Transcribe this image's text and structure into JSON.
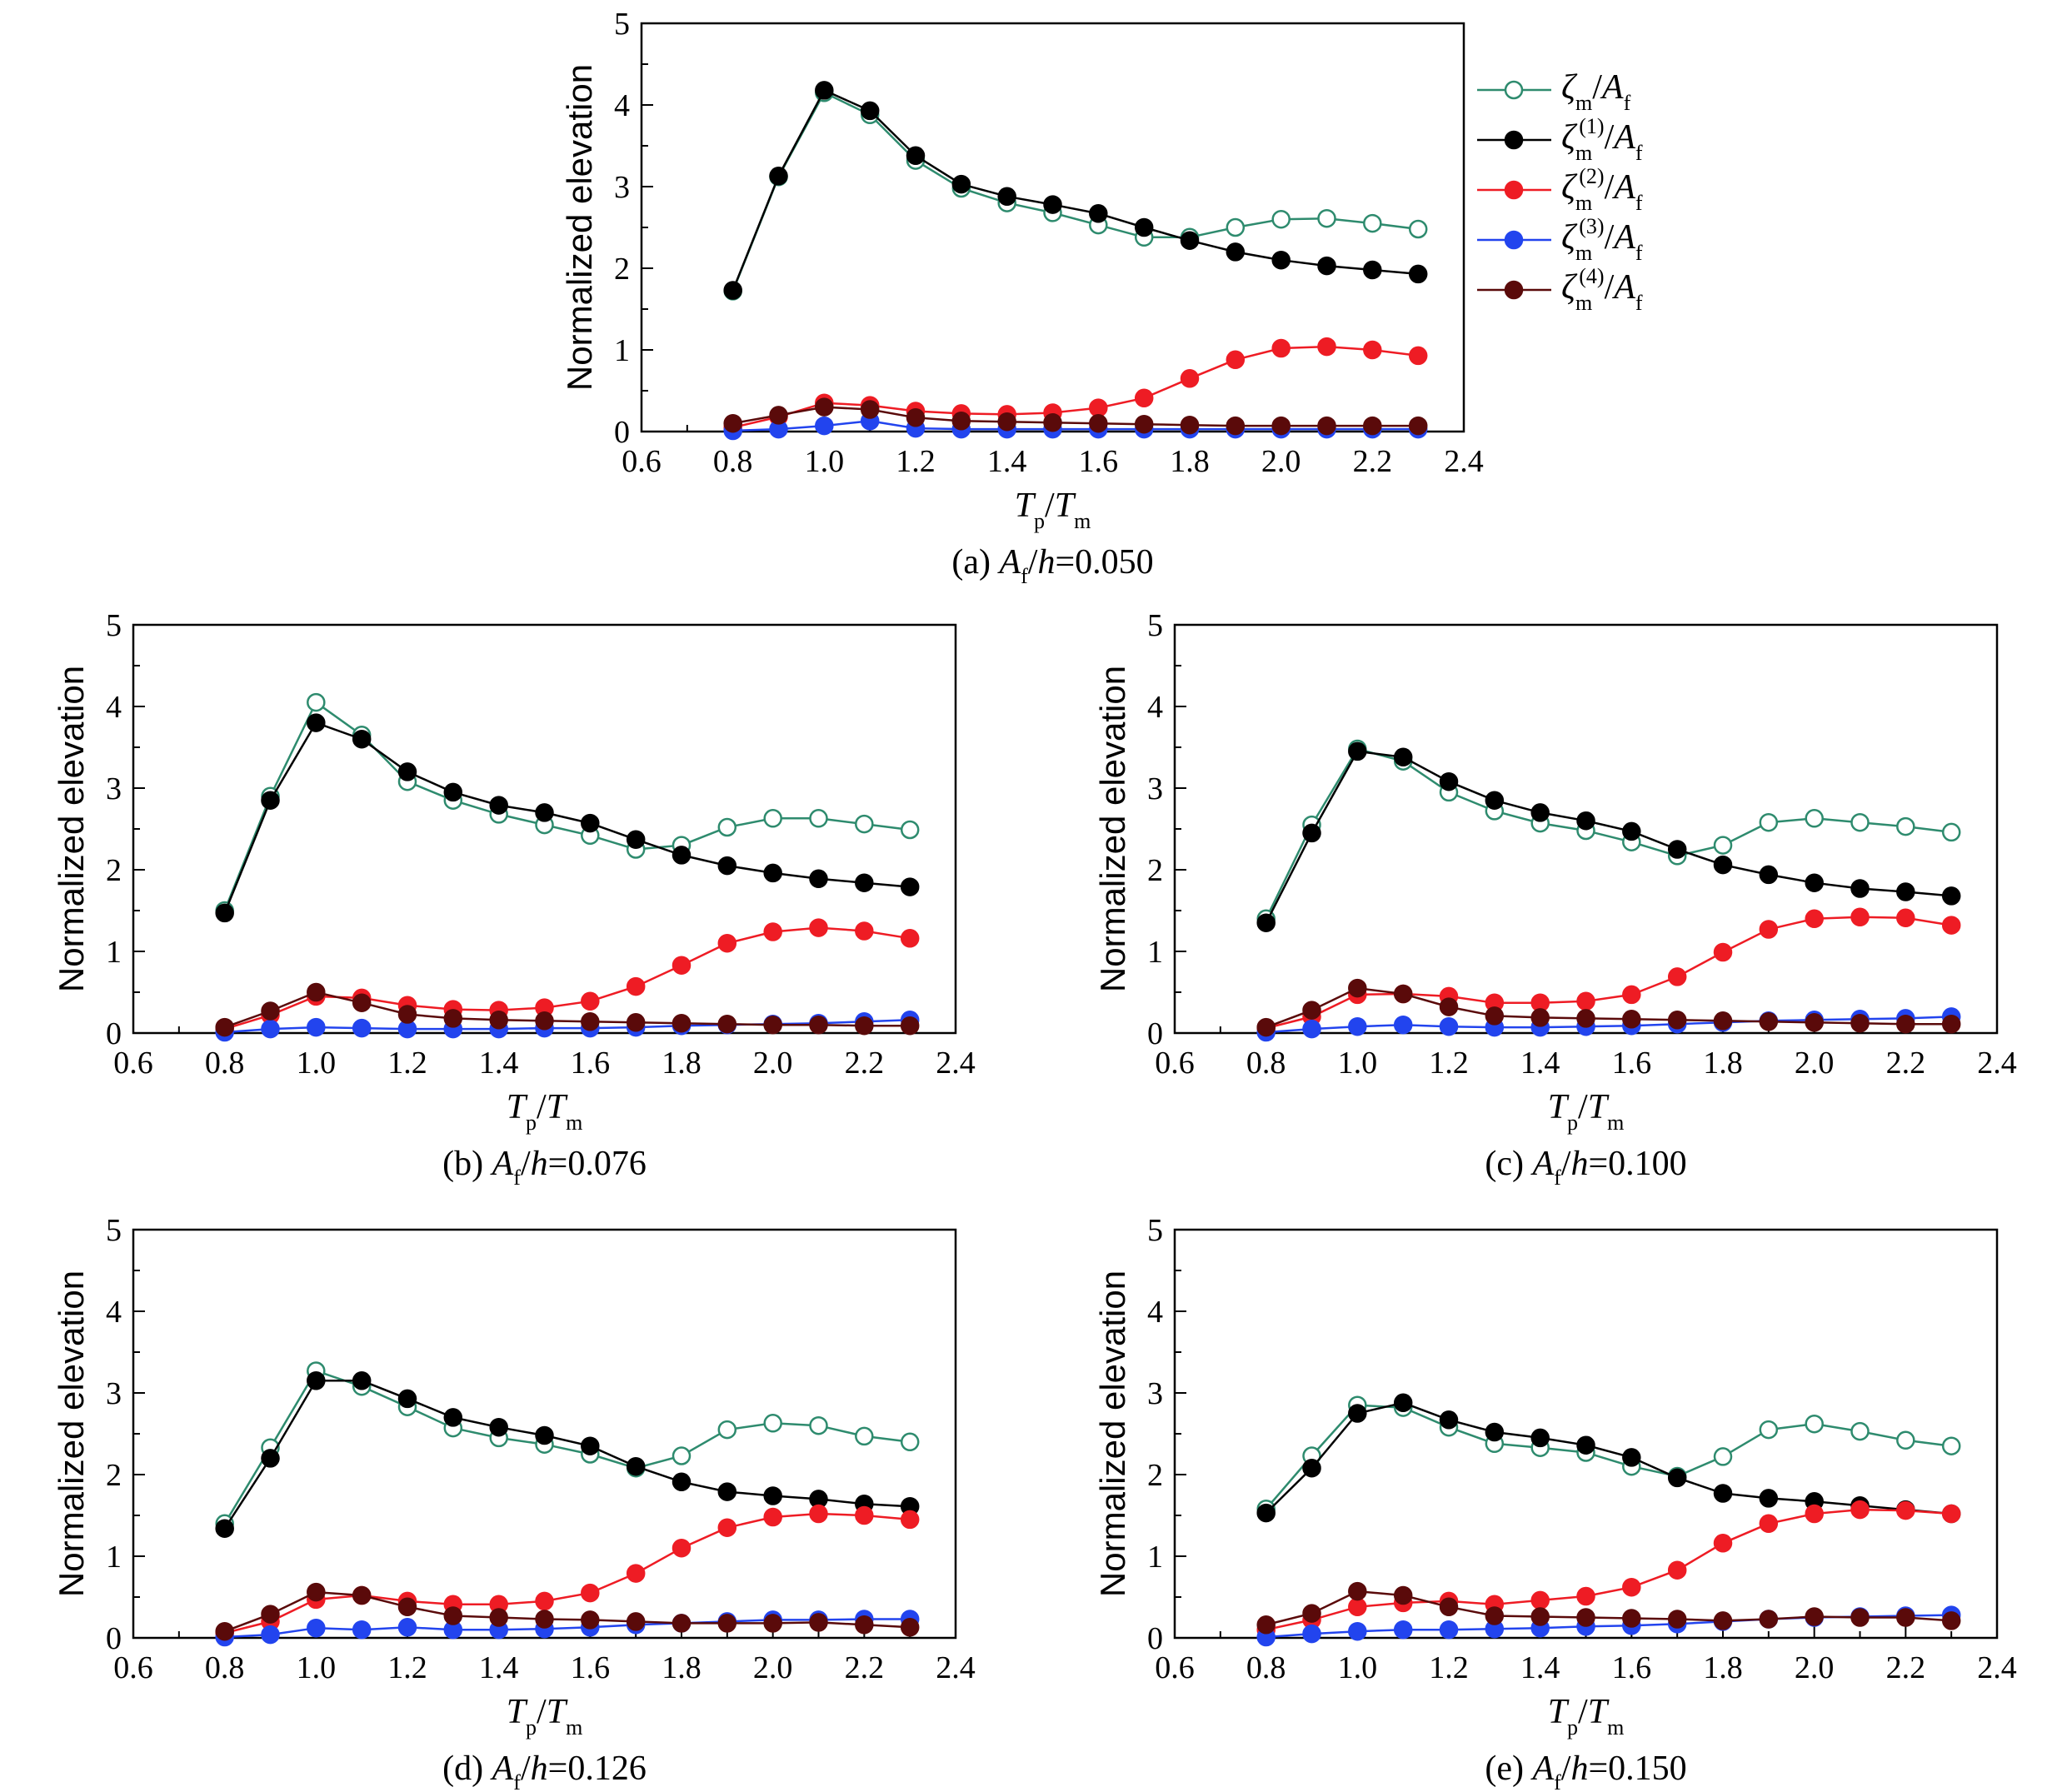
{
  "figure": {
    "colors": {
      "total": "#2e8b6e",
      "first": "#000000",
      "second": "#ee1c24",
      "third": "#2244ee",
      "fourth": "#5a0a0a"
    },
    "legend": [
      {
        "key": "total",
        "symbol": "ζ",
        "sub": "m",
        "sup": "",
        "denom": "A",
        "denom_sub": "f",
        "marker": "open"
      },
      {
        "key": "first",
        "symbol": "ζ",
        "sub": "m",
        "sup": "(1)",
        "denom": "A",
        "denom_sub": "f",
        "marker": "filled"
      },
      {
        "key": "second",
        "symbol": "ζ",
        "sub": "m",
        "sup": "(2)",
        "denom": "A",
        "denom_sub": "f",
        "marker": "filled"
      },
      {
        "key": "third",
        "symbol": "ζ",
        "sub": "m",
        "sup": "(3)",
        "denom": "A",
        "denom_sub": "f",
        "marker": "filled"
      },
      {
        "key": "fourth",
        "symbol": "ζ",
        "sub": "m",
        "sup": "(4)",
        "denom": "A",
        "denom_sub": "f",
        "marker": "filled"
      }
    ]
  },
  "chart_data": [
    {
      "type": "line",
      "panel_label": "(a)",
      "caption_value": "0.050",
      "ylabel": "Normalized elevation",
      "xlabel": {
        "T": "T",
        "p": "p",
        "slash": "/",
        "m": "m"
      },
      "xlim": [
        0.6,
        2.4
      ],
      "ylim": [
        0,
        5
      ],
      "xticks": [
        "0.6",
        "0.8",
        "1.0",
        "1.2",
        "1.4",
        "1.6",
        "1.8",
        "2.0",
        "2.2",
        "2.4"
      ],
      "yticks": [
        "0",
        "1",
        "2",
        "3",
        "4",
        "5"
      ],
      "x": [
        0.8,
        0.9,
        1.0,
        1.1,
        1.2,
        1.3,
        1.4,
        1.5,
        1.6,
        1.7,
        1.8,
        1.9,
        2.0,
        2.1,
        2.2,
        2.3
      ],
      "series": [
        {
          "key": "total",
          "values": [
            1.72,
            3.12,
            4.15,
            3.88,
            3.32,
            2.98,
            2.8,
            2.68,
            2.53,
            2.38,
            2.38,
            2.5,
            2.6,
            2.61,
            2.55,
            2.48
          ]
        },
        {
          "key": "first",
          "values": [
            1.73,
            3.13,
            4.18,
            3.93,
            3.38,
            3.03,
            2.88,
            2.78,
            2.67,
            2.5,
            2.34,
            2.2,
            2.1,
            2.03,
            1.98,
            1.93
          ]
        },
        {
          "key": "second",
          "values": [
            0.05,
            0.18,
            0.35,
            0.32,
            0.25,
            0.22,
            0.21,
            0.23,
            0.29,
            0.41,
            0.65,
            0.88,
            1.02,
            1.04,
            1.0,
            0.93
          ]
        },
        {
          "key": "third",
          "values": [
            0.01,
            0.03,
            0.07,
            0.13,
            0.04,
            0.03,
            0.03,
            0.03,
            0.03,
            0.03,
            0.03,
            0.03,
            0.03,
            0.03,
            0.03,
            0.03
          ]
        },
        {
          "key": "fourth",
          "values": [
            0.1,
            0.2,
            0.3,
            0.27,
            0.17,
            0.13,
            0.12,
            0.11,
            0.1,
            0.09,
            0.08,
            0.07,
            0.07,
            0.07,
            0.07,
            0.07
          ]
        }
      ]
    },
    {
      "type": "line",
      "panel_label": "(b)",
      "caption_value": "0.076",
      "ylabel": "Normalized elevation",
      "xlabel": {
        "T": "T",
        "p": "p",
        "slash": "/",
        "m": "m"
      },
      "xlim": [
        0.6,
        2.4
      ],
      "ylim": [
        0,
        5
      ],
      "xticks": [
        "0.6",
        "0.8",
        "1.0",
        "1.2",
        "1.4",
        "1.6",
        "1.8",
        "2.0",
        "2.2",
        "2.4"
      ],
      "yticks": [
        "0",
        "1",
        "2",
        "3",
        "4",
        "5"
      ],
      "x": [
        0.8,
        0.9,
        1.0,
        1.1,
        1.2,
        1.3,
        1.4,
        1.5,
        1.6,
        1.7,
        1.8,
        1.9,
        2.0,
        2.1,
        2.2,
        2.3
      ],
      "series": [
        {
          "key": "total",
          "values": [
            1.5,
            2.9,
            4.05,
            3.65,
            3.08,
            2.85,
            2.68,
            2.55,
            2.42,
            2.25,
            2.3,
            2.52,
            2.63,
            2.63,
            2.56,
            2.49
          ]
        },
        {
          "key": "first",
          "values": [
            1.47,
            2.85,
            3.8,
            3.6,
            3.2,
            2.95,
            2.79,
            2.7,
            2.57,
            2.37,
            2.18,
            2.05,
            1.96,
            1.89,
            1.84,
            1.79
          ]
        },
        {
          "key": "second",
          "values": [
            0.05,
            0.22,
            0.45,
            0.43,
            0.34,
            0.29,
            0.28,
            0.31,
            0.39,
            0.57,
            0.83,
            1.1,
            1.24,
            1.29,
            1.25,
            1.16
          ]
        },
        {
          "key": "third",
          "values": [
            0.01,
            0.05,
            0.07,
            0.06,
            0.05,
            0.05,
            0.05,
            0.06,
            0.06,
            0.07,
            0.09,
            0.1,
            0.11,
            0.12,
            0.14,
            0.16
          ]
        },
        {
          "key": "fourth",
          "values": [
            0.07,
            0.27,
            0.5,
            0.37,
            0.23,
            0.18,
            0.16,
            0.15,
            0.14,
            0.13,
            0.12,
            0.11,
            0.1,
            0.1,
            0.09,
            0.09
          ]
        }
      ]
    },
    {
      "type": "line",
      "panel_label": "(c)",
      "caption_value": "0.100",
      "ylabel": "Normalized elevation",
      "xlabel": {
        "T": "T",
        "p": "p",
        "slash": "/",
        "m": "m"
      },
      "xlim": [
        0.6,
        2.4
      ],
      "ylim": [
        0,
        5
      ],
      "xticks": [
        "0.6",
        "0.8",
        "1.0",
        "1.2",
        "1.4",
        "1.6",
        "1.8",
        "2.0",
        "2.2",
        "2.4"
      ],
      "yticks": [
        "0",
        "1",
        "2",
        "3",
        "4",
        "5"
      ],
      "x": [
        0.8,
        0.9,
        1.0,
        1.1,
        1.2,
        1.3,
        1.4,
        1.5,
        1.6,
        1.7,
        1.8,
        1.9,
        2.0,
        2.1,
        2.2,
        2.3
      ],
      "series": [
        {
          "key": "total",
          "values": [
            1.4,
            2.55,
            3.48,
            3.33,
            2.95,
            2.72,
            2.57,
            2.48,
            2.34,
            2.17,
            2.3,
            2.58,
            2.63,
            2.58,
            2.53,
            2.46
          ]
        },
        {
          "key": "first",
          "values": [
            1.35,
            2.45,
            3.45,
            3.38,
            3.08,
            2.85,
            2.7,
            2.6,
            2.47,
            2.25,
            2.06,
            1.94,
            1.84,
            1.77,
            1.73,
            1.68
          ]
        },
        {
          "key": "second",
          "values": [
            0.06,
            0.2,
            0.47,
            0.48,
            0.45,
            0.37,
            0.37,
            0.39,
            0.47,
            0.69,
            0.99,
            1.27,
            1.4,
            1.42,
            1.41,
            1.32
          ]
        },
        {
          "key": "third",
          "values": [
            0.01,
            0.05,
            0.08,
            0.1,
            0.08,
            0.07,
            0.07,
            0.08,
            0.09,
            0.11,
            0.13,
            0.15,
            0.16,
            0.17,
            0.18,
            0.2
          ]
        },
        {
          "key": "fourth",
          "values": [
            0.07,
            0.28,
            0.55,
            0.48,
            0.32,
            0.21,
            0.19,
            0.18,
            0.17,
            0.16,
            0.15,
            0.14,
            0.13,
            0.12,
            0.11,
            0.11
          ]
        }
      ]
    },
    {
      "type": "line",
      "panel_label": "(d)",
      "caption_value": "0.126",
      "ylabel": "Normalized elevation",
      "xlabel": {
        "T": "T",
        "p": "p",
        "slash": "/",
        "m": "m"
      },
      "xlim": [
        0.6,
        2.4
      ],
      "ylim": [
        0,
        5
      ],
      "xticks": [
        "0.6",
        "0.8",
        "1.0",
        "1.2",
        "1.4",
        "1.6",
        "1.8",
        "2.0",
        "2.2",
        "2.4"
      ],
      "yticks": [
        "0",
        "1",
        "2",
        "3",
        "4",
        "5"
      ],
      "x": [
        0.8,
        0.9,
        1.0,
        1.1,
        1.2,
        1.3,
        1.4,
        1.5,
        1.6,
        1.7,
        1.8,
        1.9,
        2.0,
        2.1,
        2.2,
        2.3
      ],
      "series": [
        {
          "key": "total",
          "values": [
            1.4,
            2.33,
            3.27,
            3.08,
            2.83,
            2.57,
            2.45,
            2.37,
            2.25,
            2.08,
            2.23,
            2.55,
            2.63,
            2.6,
            2.47,
            2.4
          ]
        },
        {
          "key": "first",
          "values": [
            1.34,
            2.2,
            3.15,
            3.15,
            2.93,
            2.7,
            2.58,
            2.48,
            2.35,
            2.1,
            1.91,
            1.79,
            1.74,
            1.7,
            1.64,
            1.61
          ]
        },
        {
          "key": "second",
          "values": [
            0.06,
            0.2,
            0.47,
            0.52,
            0.45,
            0.41,
            0.41,
            0.45,
            0.55,
            0.79,
            1.1,
            1.35,
            1.48,
            1.52,
            1.5,
            1.45
          ]
        },
        {
          "key": "third",
          "values": [
            0.01,
            0.04,
            0.12,
            0.1,
            0.13,
            0.1,
            0.1,
            0.11,
            0.13,
            0.16,
            0.18,
            0.2,
            0.22,
            0.22,
            0.23,
            0.23
          ]
        },
        {
          "key": "fourth",
          "values": [
            0.08,
            0.29,
            0.56,
            0.52,
            0.38,
            0.27,
            0.25,
            0.23,
            0.22,
            0.2,
            0.18,
            0.18,
            0.18,
            0.19,
            0.16,
            0.13
          ]
        }
      ]
    },
    {
      "type": "line",
      "panel_label": "(e)",
      "caption_value": "0.150",
      "ylabel": "Normalized elevation",
      "xlabel": {
        "T": "T",
        "p": "p",
        "slash": "/",
        "m": "m"
      },
      "xlim": [
        0.6,
        2.4
      ],
      "ylim": [
        0,
        5
      ],
      "xticks": [
        "0.6",
        "0.8",
        "1.0",
        "1.2",
        "1.4",
        "1.6",
        "1.8",
        "2.0",
        "2.2",
        "2.4"
      ],
      "yticks": [
        "0",
        "1",
        "2",
        "3",
        "4",
        "5"
      ],
      "x": [
        0.8,
        0.9,
        1.0,
        1.1,
        1.2,
        1.3,
        1.4,
        1.5,
        1.6,
        1.7,
        1.8,
        1.9,
        2.0,
        2.1,
        2.2,
        2.3
      ],
      "series": [
        {
          "key": "total",
          "values": [
            1.58,
            2.23,
            2.85,
            2.82,
            2.58,
            2.38,
            2.33,
            2.27,
            2.1,
            1.98,
            2.22,
            2.55,
            2.62,
            2.53,
            2.42,
            2.35
          ]
        },
        {
          "key": "first",
          "values": [
            1.53,
            2.08,
            2.75,
            2.88,
            2.67,
            2.52,
            2.45,
            2.36,
            2.21,
            1.96,
            1.77,
            1.71,
            1.67,
            1.62,
            1.57,
            1.52
          ]
        },
        {
          "key": "second",
          "values": [
            0.1,
            0.22,
            0.38,
            0.43,
            0.45,
            0.41,
            0.46,
            0.51,
            0.62,
            0.83,
            1.16,
            1.4,
            1.52,
            1.57,
            1.56,
            1.52
          ]
        },
        {
          "key": "third",
          "values": [
            0.01,
            0.05,
            0.08,
            0.1,
            0.1,
            0.11,
            0.12,
            0.14,
            0.15,
            0.17,
            0.2,
            0.23,
            0.25,
            0.26,
            0.27,
            0.28
          ]
        },
        {
          "key": "fourth",
          "values": [
            0.16,
            0.3,
            0.57,
            0.52,
            0.38,
            0.27,
            0.26,
            0.25,
            0.24,
            0.23,
            0.21,
            0.23,
            0.26,
            0.25,
            0.25,
            0.21
          ]
        }
      ]
    }
  ]
}
